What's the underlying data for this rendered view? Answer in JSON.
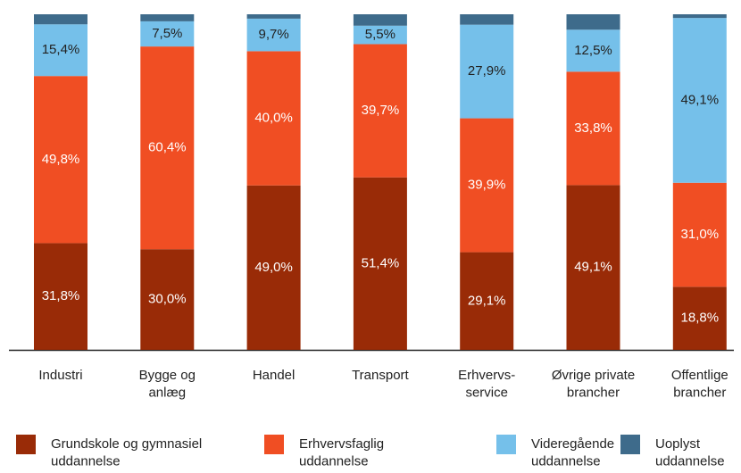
{
  "chart_data": {
    "type": "stacked_bar",
    "categories": [
      "Industri",
      "Bygge og\nanlæg",
      "Handel",
      "Transport",
      "Erhvervs-\nservice",
      "Øvrige private\nbrancher",
      "Offentlige\nbrancher"
    ],
    "ylim": [
      0,
      100
    ],
    "series": [
      {
        "name": "Grundskole og gymnasiel\nuddannelse",
        "color": "#992b07",
        "values": [
          31.8,
          30.0,
          49.0,
          51.4,
          29.1,
          49.1,
          18.8
        ],
        "value_labels": [
          "31,8%",
          "30,0%",
          "49,0%",
          "51,4%",
          "29,1%",
          "49,1%",
          "18,8%"
        ]
      },
      {
        "name": "Erhvervsfaglig\nuddannelse",
        "color": "#f04e23",
        "values": [
          49.8,
          60.4,
          40.0,
          39.7,
          39.9,
          33.8,
          31.0
        ],
        "value_labels": [
          "49,8%",
          "60,4%",
          "40,0%",
          "39,7%",
          "39,9%",
          "33,8%",
          "31,0%"
        ]
      },
      {
        "name": "Videregående\nuddannelse",
        "color": "#75c0ea",
        "values": [
          15.4,
          7.5,
          9.7,
          5.5,
          27.9,
          12.5,
          49.1
        ],
        "value_labels": [
          "15,4%",
          "7,5%",
          "9,7%",
          "5,5%",
          "27,9%",
          "12,5%",
          "49,1%"
        ]
      },
      {
        "name": "Uoplyst\nuddannelse",
        "color": "#3e6b8b",
        "values": [
          3.0,
          2.1,
          1.3,
          3.4,
          3.1,
          4.6,
          1.1
        ]
      }
    ]
  }
}
